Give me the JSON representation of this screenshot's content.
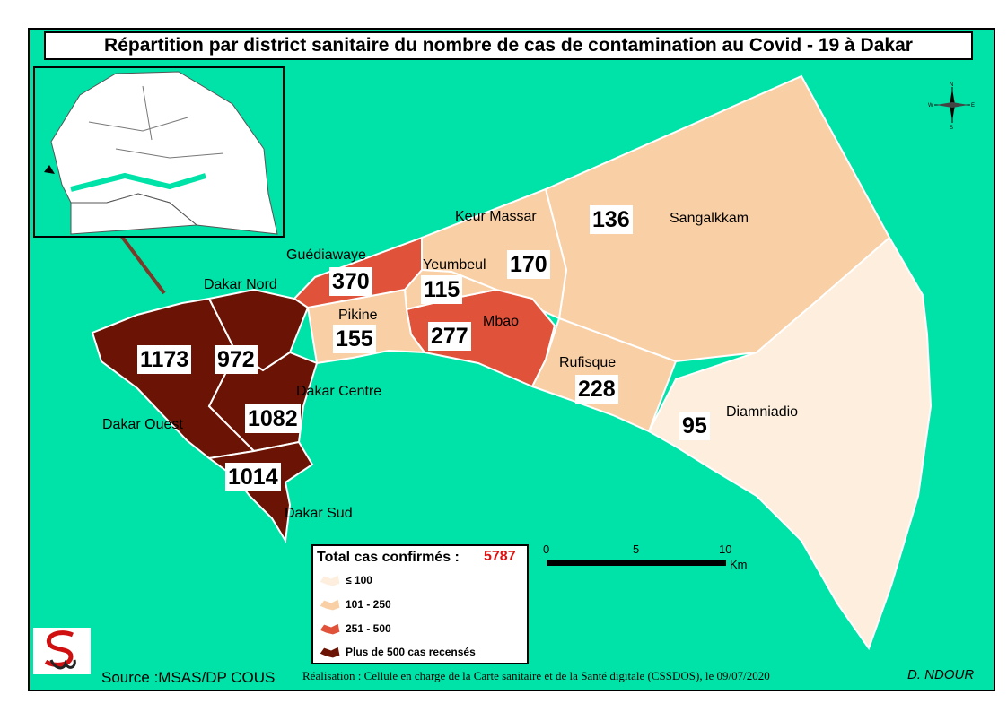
{
  "title": "Répartition par district sanitaire du nombre de cas de contamination au Covid - 19 à Dakar",
  "colors": {
    "sea": "#00e3a8",
    "class_le_100": "#fdeedd",
    "class_101_250": "#f9cfa5",
    "class_251_500": "#e0523a",
    "class_gt_500": "#6b1405"
  },
  "districts": [
    {
      "name": "Keur Massar",
      "cases": null,
      "class": "class_101_250"
    },
    {
      "name": "Sangalkkam",
      "cases": "136",
      "class": "class_101_250"
    },
    {
      "name": "Guédiawaye",
      "cases": "370",
      "class": "class_251_500"
    },
    {
      "name": "Yeumbeul",
      "cases": "115",
      "class": "class_101_250"
    },
    {
      "name": "Dakar Nord",
      "cases": "972",
      "class": "class_gt_500"
    },
    {
      "name": "Pikine",
      "cases": "155",
      "class": "class_101_250"
    },
    {
      "name": "Mbao",
      "cases": "277",
      "class": "class_251_500"
    },
    {
      "name": "Rufisque",
      "cases": "228",
      "class": "class_101_250"
    },
    {
      "name": "Dakar Centre",
      "cases": "1082",
      "class": "class_gt_500"
    },
    {
      "name": "Dakar Ouest",
      "cases": "1173",
      "class": "class_gt_500"
    },
    {
      "name": "Diamniadio",
      "cases": "95",
      "class": "class_le_100"
    },
    {
      "name": "Dakar Sud",
      "cases": "1014",
      "class": "class_gt_500"
    }
  ],
  "extra_count": "170",
  "legend": {
    "title": "Total cas confirmés :",
    "total": "5787",
    "items": [
      {
        "label": "≤ 100",
        "class": "class_le_100"
      },
      {
        "label": "101 - 250",
        "class": "class_101_250"
      },
      {
        "label": "251 - 500",
        "class": "class_251_500"
      },
      {
        "label": "Plus de 500 cas recensés",
        "class": "class_gt_500"
      }
    ]
  },
  "scale": {
    "ticks": [
      "0",
      "5",
      "10"
    ],
    "unit": "Km"
  },
  "compass": {
    "north": "N",
    "south": "S",
    "east": "E",
    "west": "W"
  },
  "footer": {
    "source": "Source :MSAS/DP COUS",
    "credit": "Réalisation :  Cellule en charge  de la Carte sanitaire et de la Santé digitale  (CSSDOS), le 09/07/2020",
    "author": "D. NDOUR"
  }
}
